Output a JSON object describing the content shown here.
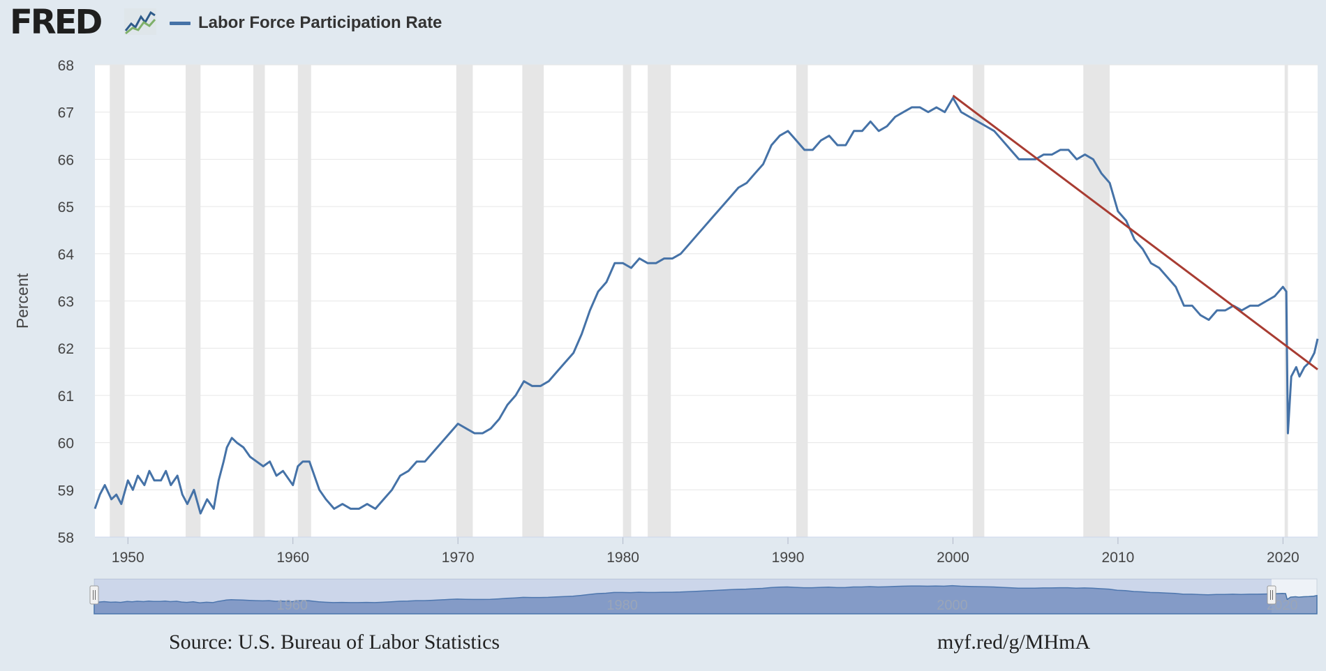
{
  "header": {
    "logo_text": "FRED",
    "logo_icon": "chart-line-icon",
    "legend_label": "Labor Force Participation Rate"
  },
  "footer": {
    "source": "Source: U.S. Bureau of Labor Statistics",
    "url": "myf.red/g/MHmA"
  },
  "colors": {
    "series": "#4572a7",
    "trend": "#a83c32",
    "recession": "#e6e6e6",
    "plot_bg": "#ffffff",
    "page_bg": "#e1e9f0",
    "navigator": "#8ea3c9"
  },
  "chart_data": {
    "type": "line",
    "title": "",
    "xlabel": "",
    "ylabel": "Percent",
    "xlim": [
      1948.0,
      2022.1
    ],
    "ylim": [
      58,
      68
    ],
    "x_ticks": [
      "1950",
      "1960",
      "1970",
      "1980",
      "1990",
      "2000",
      "2010",
      "2020"
    ],
    "y_ticks": [
      "58",
      "59",
      "60",
      "61",
      "62",
      "63",
      "64",
      "65",
      "66",
      "67",
      "68"
    ],
    "grid": true,
    "legend": "top-left",
    "recessions": [
      [
        1948.9,
        1949.8
      ],
      [
        1953.5,
        1954.4
      ],
      [
        1957.6,
        1958.3
      ],
      [
        1960.3,
        1961.1
      ],
      [
        1969.9,
        1970.9
      ],
      [
        1973.9,
        1975.2
      ],
      [
        1980.0,
        1980.5
      ],
      [
        1981.5,
        1982.9
      ],
      [
        1990.5,
        1991.2
      ],
      [
        2001.2,
        2001.9
      ],
      [
        2007.9,
        2009.5
      ],
      [
        2020.1,
        2020.3
      ]
    ],
    "series": [
      {
        "values_x": [
          1948.0,
          1948.3,
          1948.6,
          1949.0,
          1949.3,
          1949.6,
          1950.0,
          1950.3,
          1950.6,
          1951.0,
          1951.3,
          1951.6,
          1952.0,
          1952.3,
          1952.6,
          1953.0,
          1953.3,
          1953.6,
          1954.0,
          1954.4,
          1954.8,
          1955.2,
          1955.5,
          1955.8,
          1956.0,
          1956.3,
          1956.6,
          1957.0,
          1957.4,
          1957.8,
          1958.2,
          1958.6,
          1959.0,
          1959.4,
          1959.8,
          1960.0,
          1960.3,
          1960.6,
          1961.0,
          1961.3,
          1961.6,
          1962.0,
          1962.5,
          1963.0,
          1963.5,
          1964.0,
          1964.5,
          1965.0,
          1965.5,
          1966.0,
          1966.5,
          1967.0,
          1967.5,
          1968.0,
          1968.5,
          1969.0,
          1969.5,
          1970.0,
          1970.5,
          1971.0,
          1971.5,
          1972.0,
          1972.5,
          1973.0,
          1973.5,
          1974.0,
          1974.5,
          1975.0,
          1975.5,
          1976.0,
          1976.5,
          1977.0,
          1977.5,
          1978.0,
          1978.5,
          1979.0,
          1979.5,
          1980.0,
          1980.5,
          1981.0,
          1981.5,
          1982.0,
          1982.5,
          1983.0,
          1983.5,
          1984.0,
          1984.5,
          1985.0,
          1985.5,
          1986.0,
          1986.5,
          1987.0,
          1987.5,
          1988.0,
          1988.5,
          1989.0,
          1989.5,
          1990.0,
          1990.5,
          1991.0,
          1991.5,
          1992.0,
          1992.5,
          1993.0,
          1993.5,
          1994.0,
          1994.5,
          1995.0,
          1995.5,
          1996.0,
          1996.5,
          1997.0,
          1997.5,
          1998.0,
          1998.5,
          1999.0,
          1999.5,
          2000.0,
          2000.5,
          2001.0,
          2001.5,
          2002.0,
          2002.5,
          2003.0,
          2003.5,
          2004.0,
          2004.5,
          2005.0,
          2005.5,
          2006.0,
          2006.5,
          2007.0,
          2007.5,
          2008.0,
          2008.5,
          2009.0,
          2009.5,
          2010.0,
          2010.5,
          2011.0,
          2011.5,
          2012.0,
          2012.5,
          2013.0,
          2013.5,
          2014.0,
          2014.5,
          2015.0,
          2015.5,
          2016.0,
          2016.5,
          2017.0,
          2017.5,
          2018.0,
          2018.5,
          2019.0,
          2019.5,
          2020.0,
          2020.2,
          2020.3,
          2020.5,
          2020.8,
          2021.0,
          2021.3,
          2021.6,
          2021.9,
          2022.1
        ],
        "values_y": [
          58.6,
          58.9,
          59.1,
          58.8,
          58.9,
          58.7,
          59.2,
          59.0,
          59.3,
          59.1,
          59.4,
          59.2,
          59.2,
          59.4,
          59.1,
          59.3,
          58.9,
          58.7,
          59.0,
          58.5,
          58.8,
          58.6,
          59.2,
          59.6,
          59.9,
          60.1,
          60.0,
          59.9,
          59.7,
          59.6,
          59.5,
          59.6,
          59.3,
          59.4,
          59.2,
          59.1,
          59.5,
          59.6,
          59.6,
          59.3,
          59.0,
          58.8,
          58.6,
          58.7,
          58.6,
          58.6,
          58.7,
          58.6,
          58.8,
          59.0,
          59.3,
          59.4,
          59.6,
          59.6,
          59.8,
          60.0,
          60.2,
          60.4,
          60.3,
          60.2,
          60.2,
          60.3,
          60.5,
          60.8,
          61.0,
          61.3,
          61.2,
          61.2,
          61.3,
          61.5,
          61.7,
          61.9,
          62.3,
          62.8,
          63.2,
          63.4,
          63.8,
          63.8,
          63.7,
          63.9,
          63.8,
          63.8,
          63.9,
          63.9,
          64.0,
          64.2,
          64.4,
          64.6,
          64.8,
          65.0,
          65.2,
          65.4,
          65.5,
          65.7,
          65.9,
          66.3,
          66.5,
          66.6,
          66.4,
          66.2,
          66.2,
          66.4,
          66.5,
          66.3,
          66.3,
          66.6,
          66.6,
          66.8,
          66.6,
          66.7,
          66.9,
          67.0,
          67.1,
          67.1,
          67.0,
          67.1,
          67.0,
          67.3,
          67.0,
          66.9,
          66.8,
          66.7,
          66.6,
          66.4,
          66.2,
          66.0,
          66.0,
          66.0,
          66.1,
          66.1,
          66.2,
          66.2,
          66.0,
          66.1,
          66.0,
          65.7,
          65.5,
          64.9,
          64.7,
          64.3,
          64.1,
          63.8,
          63.7,
          63.5,
          63.3,
          62.9,
          62.9,
          62.7,
          62.6,
          62.8,
          62.8,
          62.9,
          62.8,
          62.9,
          62.9,
          63.0,
          63.1,
          63.3,
          63.2,
          60.2,
          61.4,
          61.6,
          61.4,
          61.6,
          61.7,
          61.9,
          62.2
        ]
      }
    ],
    "trend": {
      "x": [
        2000.0,
        2022.1
      ],
      "y": [
        67.35,
        61.55
      ]
    }
  }
}
